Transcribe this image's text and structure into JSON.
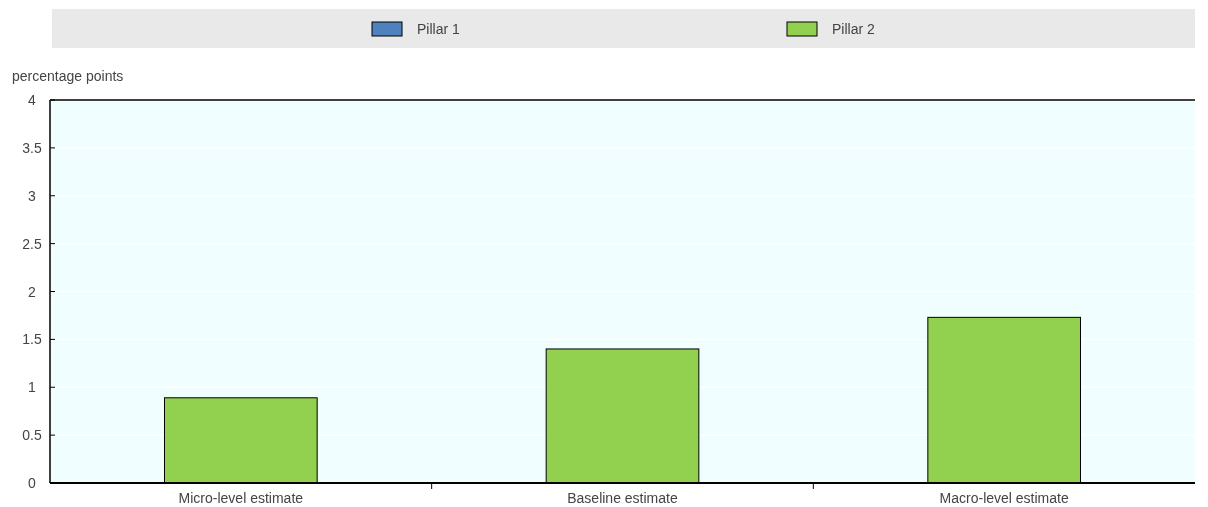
{
  "chart_data": {
    "type": "bar",
    "stacked": true,
    "ylabel": "percentage points",
    "categories": [
      "Micro-level estimate",
      "Baseline estimate",
      "Macro-level estimate"
    ],
    "series": [
      {
        "name": "Pillar 1",
        "color": "#4e81bd",
        "values": [
          0,
          0,
          0
        ]
      },
      {
        "name": "Pillar 2",
        "color": "#92d050",
        "values": [
          0.89,
          1.4,
          1.73
        ]
      }
    ],
    "ylim": [
      0,
      4
    ],
    "yticks": [
      0,
      0.5,
      1,
      1.5,
      2,
      2.5,
      3,
      3.5,
      4
    ],
    "grid": "y",
    "legend": "top"
  }
}
